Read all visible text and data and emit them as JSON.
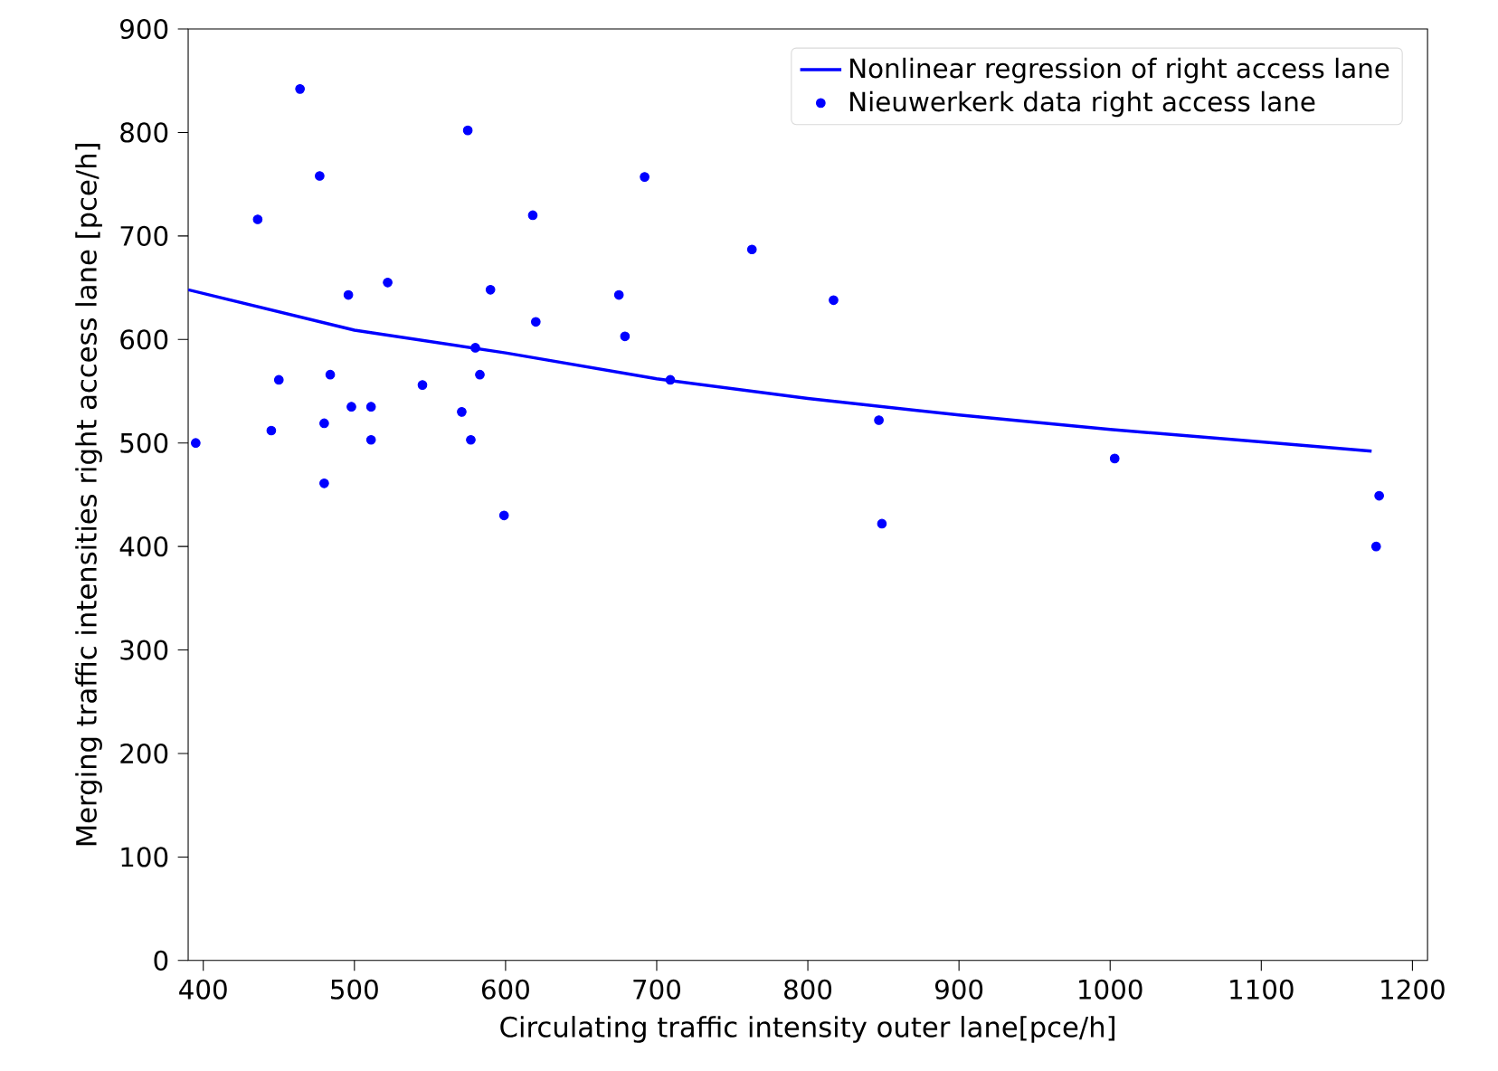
{
  "chart_data": {
    "type": "scatter",
    "xlabel": "Circulating traffic intensity outer lane[pce/h]",
    "ylabel": "Merging traffic intensities right access lane [pce/h]",
    "xlim": [
      390,
      1210
    ],
    "ylim": [
      0,
      900
    ],
    "xticks": [
      400,
      500,
      600,
      700,
      800,
      900,
      1000,
      1100,
      1200
    ],
    "yticks": [
      0,
      100,
      200,
      300,
      400,
      500,
      600,
      700,
      800,
      900
    ],
    "legend": "top right",
    "series": [
      {
        "name": "Nonlinear regression of right access lane",
        "type": "line",
        "color": "#0000ff",
        "marker": "none",
        "x": [
          390,
          500,
          600,
          700,
          800,
          900,
          1000,
          1100,
          1173
        ],
        "values": [
          648,
          609,
          587,
          562,
          543,
          527,
          513,
          501,
          492
        ]
      },
      {
        "name": "Nieuwerkerk data right access lane",
        "color": "#0000ff",
        "marker": "circle",
        "x": [
          395,
          436,
          464,
          477,
          445,
          450,
          480,
          480,
          484,
          496,
          498,
          511,
          511,
          522,
          545,
          571,
          577,
          575,
          580,
          583,
          590,
          599,
          618,
          620,
          675,
          679,
          692,
          709,
          763,
          817,
          847,
          849,
          1003,
          1178,
          1176
        ],
        "values": [
          500,
          716,
          842,
          758,
          512,
          561,
          519,
          461,
          566,
          643,
          535,
          535,
          503,
          655,
          556,
          530,
          503,
          802,
          592,
          566,
          648,
          430,
          720,
          617,
          643,
          603,
          757,
          561,
          687,
          638,
          522,
          422,
          485,
          449,
          400
        ]
      }
    ]
  }
}
